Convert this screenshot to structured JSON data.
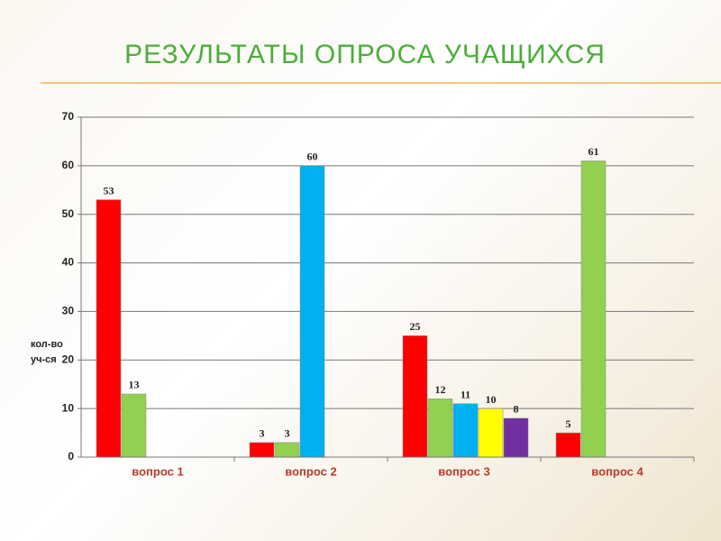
{
  "chart_data": {
    "type": "bar",
    "title": "РЕЗУЛЬТАТЫ ОПРОСА УЧАЩИХСЯ",
    "ylabel": [
      "кол-во",
      "уч-ся"
    ],
    "categories": [
      "вопрос 1",
      "вопрос 2",
      "вопрос 3",
      "вопрос 4"
    ],
    "series": [
      {
        "color": "#ff0000",
        "values": [
          53,
          3,
          25,
          5
        ]
      },
      {
        "color": "#92d050",
        "values": [
          13,
          3,
          12,
          61
        ]
      },
      {
        "color": "#00b0f0",
        "values": [
          null,
          60,
          11,
          null
        ]
      },
      {
        "color": "#ffff00",
        "values": [
          null,
          null,
          10,
          null
        ]
      },
      {
        "color": "#7030a0",
        "values": [
          null,
          null,
          8,
          null
        ]
      }
    ],
    "ylim": [
      0,
      70
    ],
    "yticks": [
      0,
      10,
      20,
      30,
      40,
      50,
      60,
      70
    ],
    "grid": true
  }
}
